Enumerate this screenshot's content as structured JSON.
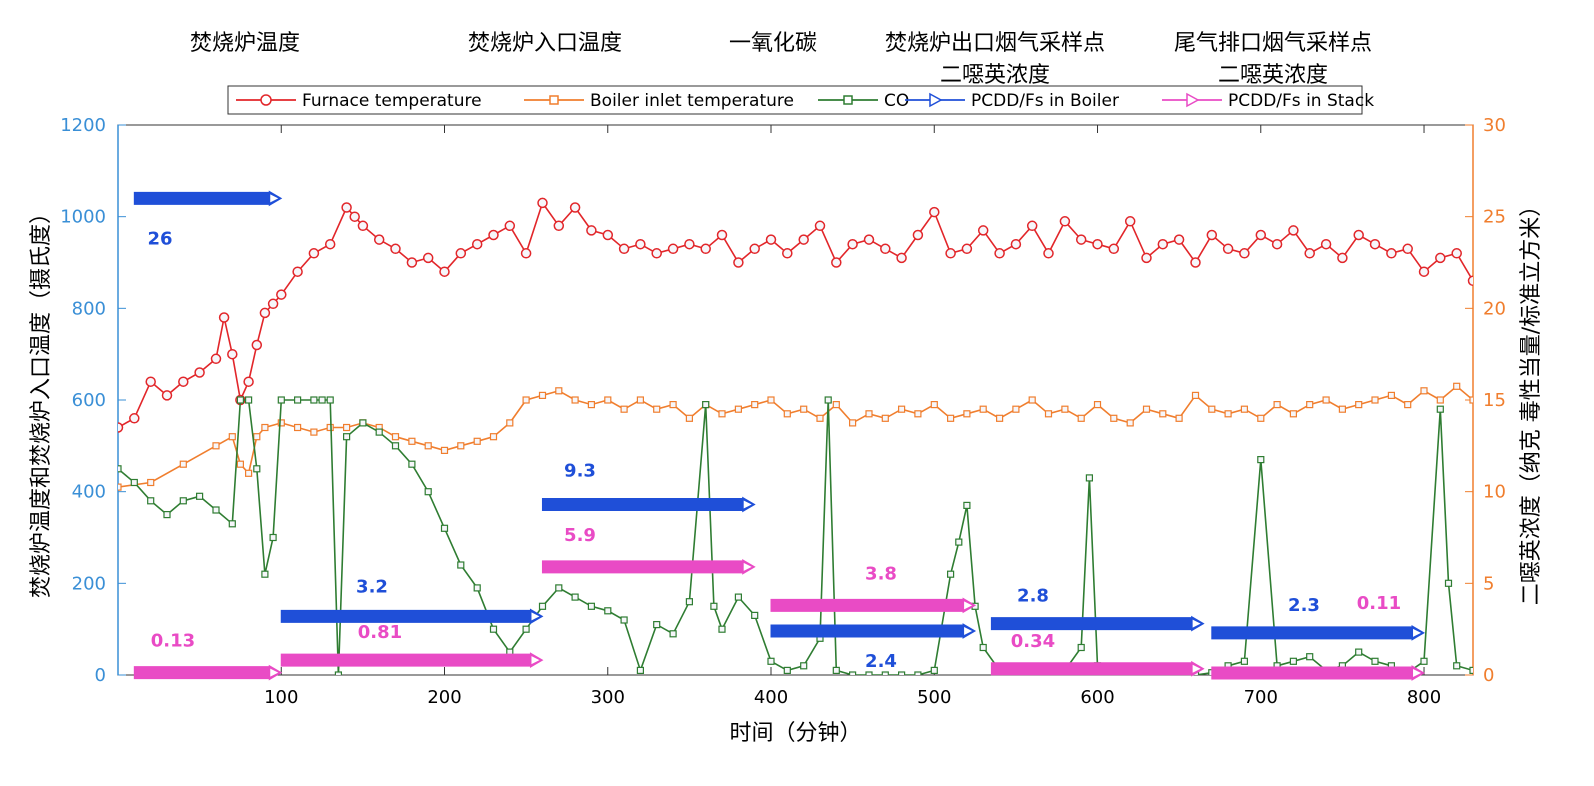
{
  "chart_data": {
    "type": "line",
    "top_titles": [
      {
        "lines": [
          "焚烧炉温度"
        ]
      },
      {
        "lines": [
          "焚烧炉入口温度"
        ]
      },
      {
        "lines": [
          "一氧化碳"
        ]
      },
      {
        "lines": [
          "焚烧炉出口烟气采样点",
          "二噁英浓度"
        ]
      },
      {
        "lines": [
          "尾气排口烟气采样点",
          "二噁英浓度"
        ]
      }
    ],
    "xlabel": "时间（分钟）",
    "ylabel_left": "焚烧炉温度和焚烧炉入口温度（摄氏度）",
    "ylabel_right": "二噁英浓度（纳克 毒性当量/标准立方米）",
    "xlim": [
      0,
      830
    ],
    "ylim_left": [
      0,
      1200
    ],
    "ylim_right": [
      0,
      30
    ],
    "x_ticks": [
      "100",
      "200",
      "300",
      "400",
      "500",
      "600",
      "700",
      "800"
    ],
    "y_left_ticks": [
      "0",
      "200",
      "400",
      "600",
      "800",
      "1000",
      "1200"
    ],
    "y_right_ticks": [
      "0",
      "5",
      "10",
      "15",
      "20",
      "25",
      "30"
    ],
    "legend": [
      "Furnace temperature",
      "Boiler inlet temperature",
      "CO",
      "PCDD/Fs in Boiler",
      "PCDD/Fs in Stack"
    ],
    "legend_placement": "top-center",
    "colors": {
      "furnace": "#e2262a",
      "boiler": "#f07e2e",
      "co": "#2f7d32",
      "pcdd_boiler": "#1f4fd8",
      "pcdd_stack": "#e94bc5",
      "axis_left": "#3a8fd6",
      "axis_right": "#f07e2e"
    },
    "series": [
      {
        "name": "Furnace temperature",
        "axis": "left",
        "x": [
          0,
          10,
          20,
          30,
          40,
          50,
          60,
          65,
          70,
          75,
          80,
          85,
          90,
          95,
          100,
          110,
          120,
          130,
          140,
          145,
          150,
          160,
          170,
          180,
          190,
          200,
          210,
          220,
          230,
          240,
          250,
          260,
          270,
          280,
          290,
          300,
          310,
          320,
          330,
          340,
          350,
          360,
          370,
          380,
          390,
          400,
          410,
          420,
          430,
          440,
          450,
          460,
          470,
          480,
          490,
          500,
          510,
          520,
          530,
          540,
          550,
          560,
          570,
          580,
          590,
          600,
          610,
          620,
          630,
          640,
          650,
          660,
          670,
          680,
          690,
          700,
          710,
          720,
          730,
          740,
          750,
          760,
          770,
          780,
          790,
          800,
          810,
          820,
          830
        ],
        "y": [
          540,
          560,
          640,
          610,
          640,
          660,
          690,
          780,
          700,
          600,
          640,
          720,
          790,
          810,
          830,
          880,
          920,
          940,
          1020,
          1000,
          980,
          950,
          930,
          900,
          910,
          880,
          920,
          940,
          960,
          980,
          920,
          1030,
          980,
          1020,
          970,
          960,
          930,
          940,
          920,
          930,
          940,
          930,
          960,
          900,
          930,
          950,
          920,
          950,
          980,
          900,
          940,
          950,
          930,
          910,
          960,
          1010,
          920,
          930,
          970,
          920,
          940,
          980,
          920,
          990,
          950,
          940,
          930,
          990,
          910,
          940,
          950,
          900,
          960,
          930,
          920,
          960,
          940,
          970,
          920,
          940,
          910,
          960,
          940,
          920,
          930,
          880,
          910,
          920,
          860
        ]
      },
      {
        "name": "Boiler inlet temperature",
        "axis": "left",
        "x": [
          0,
          20,
          40,
          60,
          70,
          75,
          80,
          85,
          90,
          100,
          110,
          120,
          130,
          140,
          150,
          160,
          170,
          180,
          190,
          200,
          210,
          220,
          230,
          240,
          250,
          260,
          270,
          280,
          290,
          300,
          310,
          320,
          330,
          340,
          350,
          360,
          370,
          380,
          390,
          400,
          410,
          420,
          430,
          440,
          450,
          460,
          470,
          480,
          490,
          500,
          510,
          520,
          530,
          540,
          550,
          560,
          570,
          580,
          590,
          600,
          610,
          620,
          630,
          640,
          650,
          660,
          670,
          680,
          690,
          700,
          710,
          720,
          730,
          740,
          750,
          760,
          770,
          780,
          790,
          800,
          810,
          820,
          830
        ],
        "y": [
          410,
          420,
          460,
          500,
          520,
          460,
          440,
          520,
          540,
          550,
          540,
          530,
          540,
          540,
          550,
          540,
          520,
          510,
          500,
          490,
          500,
          510,
          520,
          550,
          600,
          610,
          620,
          600,
          590,
          600,
          580,
          600,
          580,
          590,
          560,
          590,
          570,
          580,
          590,
          600,
          570,
          580,
          560,
          590,
          550,
          570,
          560,
          580,
          570,
          590,
          560,
          570,
          580,
          560,
          580,
          600,
          570,
          580,
          560,
          590,
          560,
          550,
          580,
          570,
          560,
          610,
          580,
          570,
          580,
          560,
          590,
          570,
          590,
          600,
          580,
          590,
          600,
          610,
          590,
          620,
          600,
          630,
          600
        ]
      },
      {
        "name": "CO",
        "axis": "left",
        "x": [
          0,
          10,
          20,
          30,
          40,
          50,
          60,
          70,
          75,
          80,
          85,
          90,
          95,
          100,
          110,
          120,
          125,
          130,
          135,
          140,
          150,
          160,
          170,
          180,
          190,
          200,
          210,
          220,
          230,
          240,
          250,
          260,
          270,
          280,
          290,
          300,
          310,
          320,
          330,
          340,
          350,
          360,
          365,
          370,
          380,
          390,
          400,
          410,
          420,
          430,
          435,
          440,
          450,
          460,
          470,
          480,
          490,
          500,
          510,
          515,
          520,
          525,
          530,
          540,
          550,
          560,
          570,
          580,
          590,
          595,
          600,
          610,
          620,
          630,
          640,
          650,
          660,
          670,
          680,
          690,
          700,
          710,
          720,
          730,
          740,
          750,
          760,
          770,
          780,
          790,
          800,
          810,
          815,
          820,
          830
        ],
        "y": [
          450,
          420,
          380,
          350,
          380,
          390,
          360,
          330,
          600,
          600,
          450,
          220,
          300,
          600,
          600,
          600,
          600,
          600,
          0,
          520,
          550,
          530,
          500,
          460,
          400,
          320,
          240,
          190,
          100,
          50,
          100,
          150,
          190,
          170,
          150,
          140,
          120,
          10,
          110,
          90,
          160,
          590,
          150,
          100,
          170,
          130,
          30,
          10,
          20,
          80,
          600,
          10,
          0,
          0,
          0,
          0,
          0,
          10,
          220,
          290,
          370,
          150,
          60,
          10,
          5,
          5,
          0,
          10,
          60,
          430,
          20,
          5,
          5,
          0,
          5,
          0,
          0,
          5,
          20,
          30,
          470,
          20,
          30,
          40,
          10,
          20,
          50,
          30,
          20,
          5,
          30,
          580,
          200,
          20,
          10
        ]
      },
      {
        "name": "PCDD/Fs in Boiler",
        "axis": "right",
        "segments": [
          {
            "x": [
              10,
              100
            ],
            "y": 26,
            "label": "26"
          },
          {
            "x": [
              100,
              260
            ],
            "y": 3.2,
            "label": "3.2"
          },
          {
            "x": [
              260,
              390
            ],
            "y": 9.3,
            "label": "9.3"
          },
          {
            "x": [
              400,
              525
            ],
            "y": 2.4,
            "label": "2.4"
          },
          {
            "x": [
              535,
              665
            ],
            "y": 2.8,
            "label": "2.8"
          },
          {
            "x": [
              670,
              800
            ],
            "y": 2.3,
            "label": "2.3"
          }
        ]
      },
      {
        "name": "PCDD/Fs in Stack",
        "axis": "right",
        "segments": [
          {
            "x": [
              10,
              100
            ],
            "y": 0.13,
            "label": "0.13"
          },
          {
            "x": [
              100,
              260
            ],
            "y": 0.81,
            "label": "0.81"
          },
          {
            "x": [
              260,
              390
            ],
            "y": 5.9,
            "label": "5.9"
          },
          {
            "x": [
              400,
              525
            ],
            "y": 3.8,
            "label": "3.8"
          },
          {
            "x": [
              535,
              665
            ],
            "y": 0.34,
            "label": "0.34"
          },
          {
            "x": [
              670,
              800
            ],
            "y": 0.11,
            "label": "0.11"
          }
        ]
      }
    ]
  }
}
